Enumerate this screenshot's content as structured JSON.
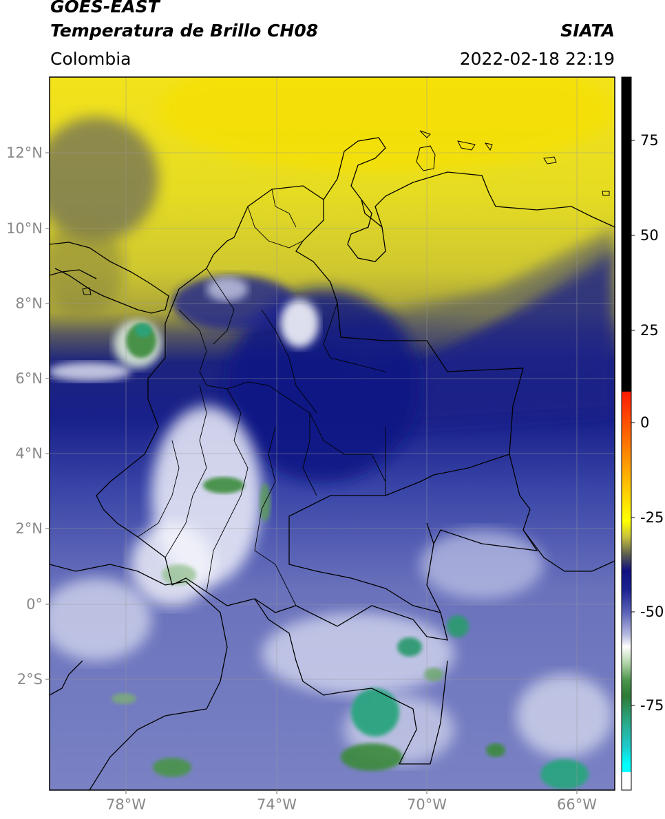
{
  "header": {
    "satellite": "GOES-EAST",
    "product": "Temperatura de Brillo CH08",
    "agency": "SIATA",
    "region": "Colombia",
    "datetime": "2022-02-18 22:19"
  },
  "axes": {
    "lat_labels": [
      "12°N",
      "10°N",
      "8°N",
      "6°N",
      "4°N",
      "2°N",
      "0°",
      "2°S"
    ],
    "lat_values": [
      12,
      10,
      8,
      6,
      4,
      2,
      0,
      -2
    ],
    "lon_labels": [
      "78°W",
      "74°W",
      "70°W",
      "66°W"
    ],
    "lon_values": [
      -78,
      -74,
      -70,
      -66
    ]
  },
  "colorbar": {
    "ticks": [
      "75",
      "50",
      "25",
      "0",
      "-25",
      "-50",
      "-75"
    ],
    "values": [
      75,
      50,
      25,
      0,
      -25,
      -50,
      -75
    ]
  },
  "colors": {
    "yellow": "#e6e600",
    "olive": "#9a9a33",
    "navy": "#141f8c",
    "slate": "#5a64b4",
    "pale": "#e8ecf6",
    "green": "#3a8a3a",
    "teal": "#2aa47f",
    "black": "#000000"
  }
}
